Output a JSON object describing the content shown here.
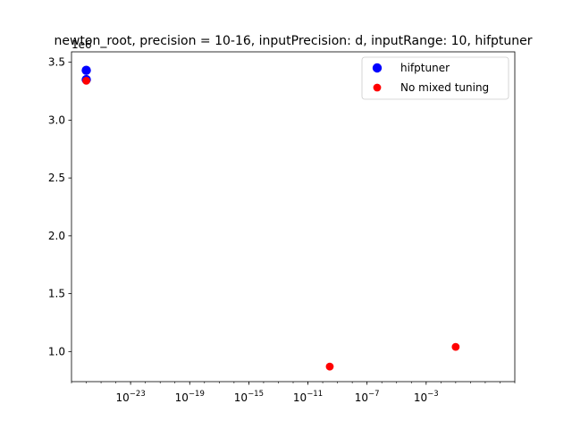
{
  "chart_data": {
    "type": "scatter",
    "title": "newton_root, precision = 10-16, inputPrecision: d, inputRange: 10, hifptuner",
    "xlabel": "",
    "ylabel": "",
    "x_scale": "log",
    "xlim": [
      1e-27,
      1000.0
    ],
    "ylim": [
      0.74,
      3.59
    ],
    "y_offset_label": "1e6",
    "x_ticks": [
      {
        "value": 1e-23,
        "base": "10",
        "exp": "−23"
      },
      {
        "value": 1e-19,
        "base": "10",
        "exp": "−19"
      },
      {
        "value": 1e-15,
        "base": "10",
        "exp": "−15"
      },
      {
        "value": 1e-11,
        "base": "10",
        "exp": "−11"
      },
      {
        "value": 1e-07,
        "base": "10",
        "exp": "−7"
      },
      {
        "value": 0.001,
        "base": "10",
        "exp": "−3"
      }
    ],
    "y_ticks": [
      {
        "value": 1.0,
        "label": "1.0"
      },
      {
        "value": 1.5,
        "label": "1.5"
      },
      {
        "value": 2.0,
        "label": "2.0"
      },
      {
        "value": 2.5,
        "label": "2.5"
      },
      {
        "value": 3.0,
        "label": "3.0"
      },
      {
        "value": 3.5,
        "label": "3.5"
      }
    ],
    "grid": false,
    "legend_position": "top-right",
    "series": [
      {
        "name": "hifptuner",
        "color": "#0000ff",
        "points": [
          {
            "x": 1e-26,
            "y": 3.43
          },
          {
            "x": 1e-26,
            "y": 3.35
          }
        ]
      },
      {
        "name": "No mixed tuning",
        "color": "#ff0000",
        "points": [
          {
            "x": 1e-26,
            "y": 3.34
          },
          {
            "x": 3e-10,
            "y": 0.87
          },
          {
            "x": 0.1,
            "y": 1.04
          }
        ]
      }
    ]
  }
}
